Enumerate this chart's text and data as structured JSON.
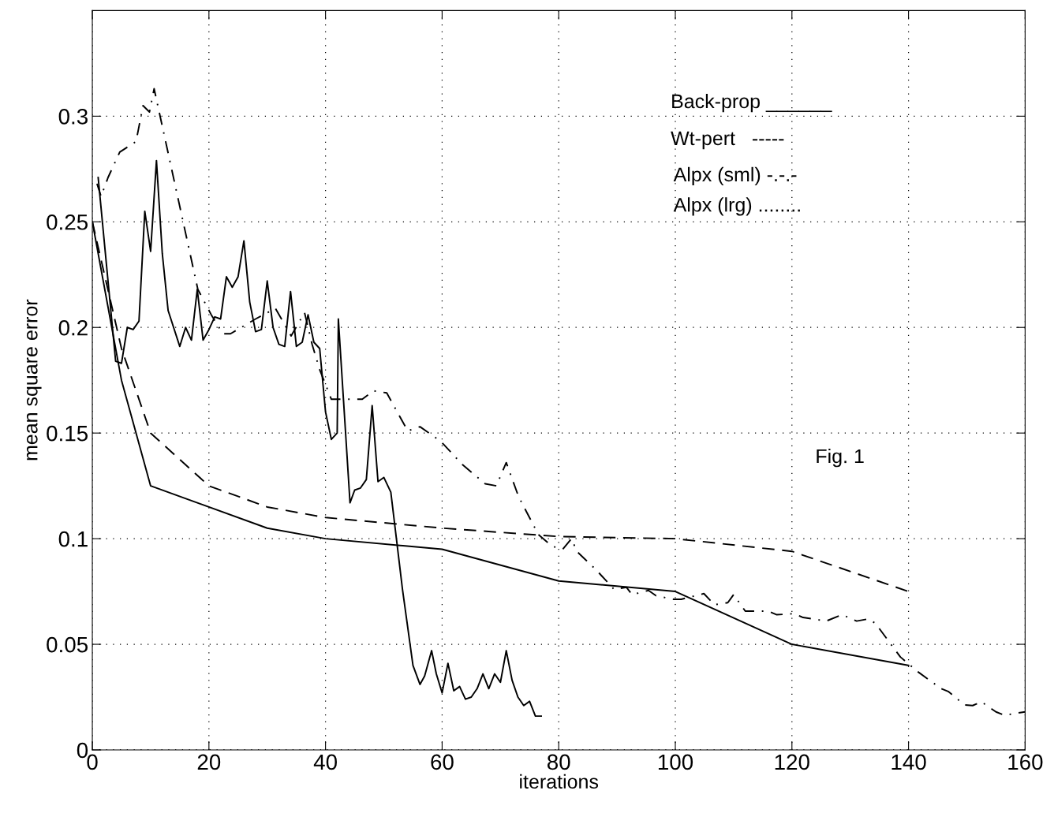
{
  "chart_data": {
    "type": "line",
    "xlabel": "iterations",
    "ylabel": "mean square error",
    "annotations": [
      "Back-prop ______",
      "Wt-pert   -----",
      "Alpx (sml) -.-.-",
      "Alpx (lrg) ........",
      "Fig. 1"
    ],
    "xlim": [
      0,
      160
    ],
    "xticks": [
      0,
      20,
      40,
      60,
      80,
      100,
      120,
      140,
      160
    ],
    "ylim": [
      0,
      0.35
    ],
    "yticks": [
      0,
      0.05,
      0.1,
      0.15,
      0.2,
      0.25,
      0.3
    ],
    "grid": true,
    "marker": "none",
    "series": [
      {
        "color": "#000000",
        "line_style": "solid",
        "x": [
          0,
          5,
          10,
          30,
          40,
          60,
          80,
          100,
          120,
          140
        ],
        "values": [
          0.25,
          0.175,
          0.125,
          0.105,
          0.1,
          0.095,
          0.08,
          0.075,
          0.05,
          0.04
        ]
      },
      {
        "color": "#000000",
        "line_style": "dashed",
        "x": [
          0,
          5,
          10,
          20,
          30,
          40,
          60,
          80,
          100,
          120,
          140
        ],
        "values": [
          0.25,
          0.19,
          0.15,
          0.125,
          0.115,
          0.11,
          0.105,
          0.101,
          0.1,
          0.094,
          0.075
        ]
      },
      {
        "color": "#000000",
        "line_style": "dashdot",
        "x": [
          0.8,
          1.5,
          2.7,
          4.7,
          7.5,
          8.7,
          9.8,
          10.6,
          18.1,
          20.4,
          22.4,
          23.7,
          28,
          31.4,
          34.1,
          36.4,
          37.7,
          39,
          41,
          44.4,
          46.3,
          48.2,
          50.5,
          54.1,
          56.2,
          59.8,
          63.5,
          67.4,
          69.3,
          71,
          73.1,
          76.5,
          78.8,
          80.7,
          82.2,
          83.1,
          86.5,
          89.5,
          91.6,
          92.6,
          95.4,
          96.7,
          99.7,
          101,
          104.9,
          106.7,
          109,
          110,
          112,
          115.9,
          117.4,
          120.4,
          121.9,
          125.9,
          128.6,
          131.1,
          133.1,
          134.3,
          138.6,
          141.6,
          145.6,
          146.8,
          149.6,
          151,
          152.5,
          155,
          156.5,
          158.7,
          160
        ],
        "values": [
          0.268,
          0.262,
          0.271,
          0.283,
          0.288,
          0.305,
          0.302,
          0.313,
          0.218,
          0.206,
          0.197,
          0.197,
          0.204,
          0.209,
          0.196,
          0.207,
          0.192,
          0.18,
          0.166,
          0.166,
          0.166,
          0.17,
          0.169,
          0.151,
          0.153,
          0.146,
          0.135,
          0.126,
          0.125,
          0.136,
          0.12,
          0.102,
          0.0965,
          0.095,
          0.1,
          0.094,
          0.085,
          0.076,
          0.077,
          0.0735,
          0.0755,
          0.073,
          0.0713,
          0.0713,
          0.074,
          0.0687,
          0.0697,
          0.0735,
          0.0657,
          0.0657,
          0.064,
          0.0645,
          0.0627,
          0.061,
          0.064,
          0.061,
          0.062,
          0.06,
          0.044,
          0.037,
          0.029,
          0.0277,
          0.0213,
          0.021,
          0.0228,
          0.018,
          0.0164,
          0.0175,
          0.018
        ]
      },
      {
        "color": "#000000",
        "line_style": "solid",
        "x": [
          1,
          4,
          5,
          6,
          7,
          8,
          9,
          10,
          11,
          12,
          13,
          15,
          16,
          17,
          18,
          19,
          20,
          21,
          22,
          23,
          24,
          25,
          26,
          27,
          28,
          29,
          30,
          31,
          32,
          33,
          34,
          35,
          36,
          37,
          38,
          39,
          40,
          41,
          42,
          42.2,
          44.2,
          45,
          46,
          47,
          48,
          49,
          50,
          51.2,
          53.2,
          55,
          56.2,
          57,
          58.2,
          59,
          60,
          61,
          62,
          63,
          64,
          65,
          66,
          67,
          68,
          69,
          70,
          71,
          72,
          73,
          74,
          75,
          76,
          77
        ],
        "values": [
          0.271,
          0.184,
          0.183,
          0.2,
          0.199,
          0.203,
          0.255,
          0.236,
          0.279,
          0.235,
          0.208,
          0.191,
          0.2,
          0.194,
          0.218,
          0.194,
          0.199,
          0.205,
          0.204,
          0.224,
          0.219,
          0.224,
          0.241,
          0.212,
          0.198,
          0.199,
          0.222,
          0.2,
          0.192,
          0.191,
          0.217,
          0.191,
          0.193,
          0.206,
          0.193,
          0.19,
          0.16,
          0.147,
          0.15,
          0.204,
          0.117,
          0.123,
          0.124,
          0.128,
          0.163,
          0.127,
          0.129,
          0.122,
          0.076,
          0.04,
          0.031,
          0.035,
          0.047,
          0.036,
          0.027,
          0.041,
          0.028,
          0.03,
          0.024,
          0.025,
          0.029,
          0.036,
          0.029,
          0.036,
          0.032,
          0.047,
          0.033,
          0.025,
          0.021,
          0.023,
          0.016,
          0.016
        ]
      }
    ]
  }
}
